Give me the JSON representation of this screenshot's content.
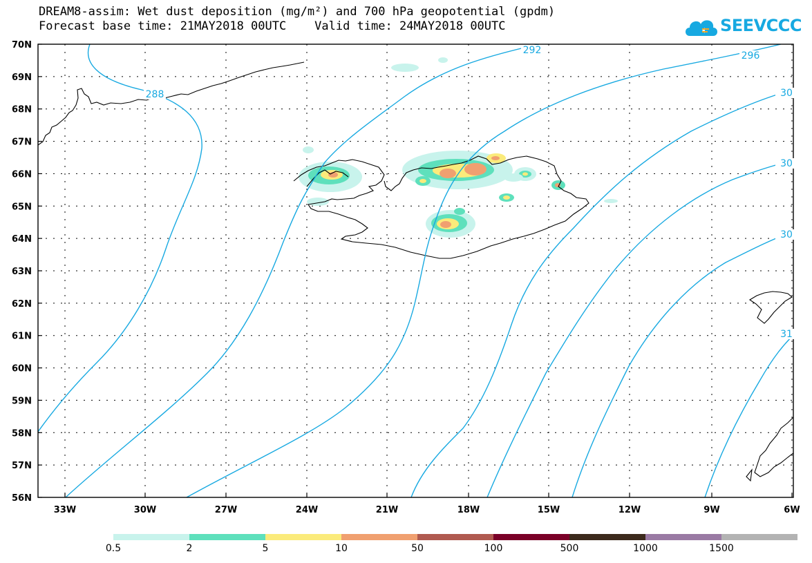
{
  "title": {
    "line1": "DREAM8-assim: Wet dust deposition (mg/m²) and 700 hPa geopotential (gpdm)",
    "line2": "Forecast base time: 21MAY2018 00UTC    Valid time: 24MAY2018 00UTC"
  },
  "logo": {
    "text": "SEEVCCC",
    "icon": "cloud-icon",
    "color": "#17a9e1"
  },
  "map": {
    "lat_labels": [
      "70N",
      "69N",
      "68N",
      "67N",
      "66N",
      "65N",
      "64N",
      "63N",
      "62N",
      "61N",
      "60N",
      "59N",
      "58N",
      "57N",
      "56N"
    ],
    "lon_labels": [
      "33W",
      "30W",
      "27W",
      "24W",
      "21W",
      "18W",
      "15W",
      "12W",
      "9W",
      "6W"
    ],
    "contour_color": "#17a9e1",
    "contour_labels": [
      "288",
      "292",
      "296",
      "30",
      "30",
      "30",
      "31"
    ]
  },
  "colorbar": {
    "colors": [
      "#c8f3ec",
      "#5ee0bc",
      "#fbeb7b",
      "#f0a070",
      "#b05a50",
      "#7a0028",
      "#3c2a1c",
      "#9a7aa4",
      "#b3b3b3"
    ],
    "labels": [
      "0.5",
      "2",
      "5",
      "10",
      "50",
      "100",
      "500",
      "1000",
      "1500"
    ]
  }
}
